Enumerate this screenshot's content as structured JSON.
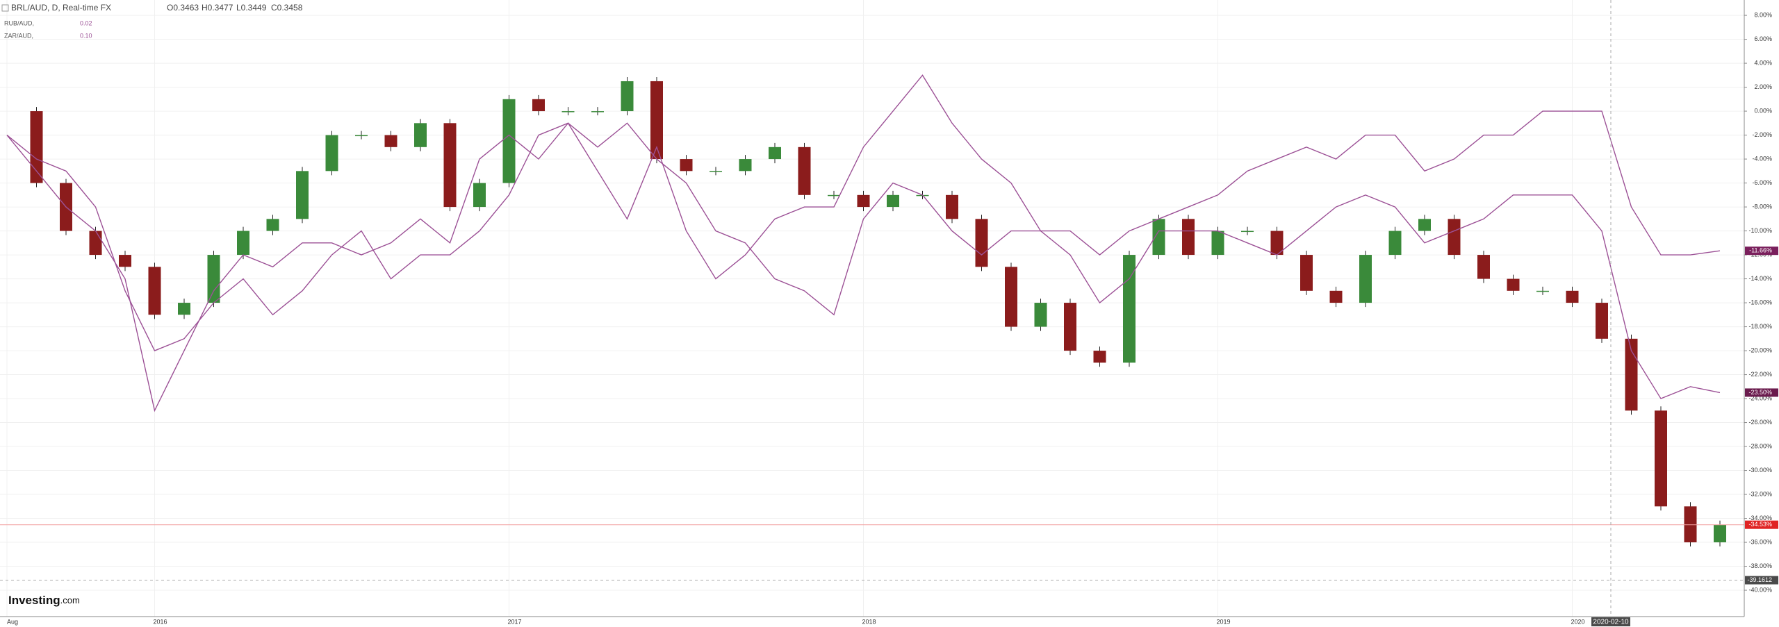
{
  "chart_data": {
    "type": "candlestick",
    "title": "BRL/AUD, D, Real-time FX",
    "ohlc": [
      "O0.3463",
      "H0.3477",
      "L0.3449",
      "C0.3458"
    ],
    "categories": [
      "Aug",
      null,
      null,
      null,
      null,
      "2016",
      null,
      null,
      null,
      null,
      null,
      null,
      null,
      null,
      null,
      null,
      null,
      "2017",
      null,
      null,
      null,
      null,
      null,
      null,
      null,
      null,
      null,
      null,
      null,
      "2018",
      null,
      null,
      null,
      null,
      null,
      null,
      null,
      null,
      null,
      null,
      null,
      "2019",
      null,
      null,
      null,
      null,
      null,
      null,
      null,
      null,
      null,
      null,
      null,
      "2020",
      null,
      null,
      null,
      null,
      null
    ],
    "up_color": "#3a8a3a",
    "down_color": "#8b1c1c",
    "series": [
      {
        "name": "BRL/AUD, D, Real-time FX",
        "type": "candlestick",
        "color": "#e02424",
        "last_value_label": "-34.53%",
        "values": [
          0,
          -6,
          -10,
          -12,
          -13,
          -17,
          -16,
          -12,
          -10,
          -9,
          -5,
          -2,
          -2,
          -3,
          -1,
          -8,
          -6,
          1,
          0,
          0,
          0,
          2.5,
          -4,
          -5,
          -5,
          -4,
          -3,
          -7,
          -7,
          -8,
          -7,
          -7,
          -9,
          -13,
          -18,
          -16,
          -20,
          -21,
          -12,
          -9,
          -12,
          -10,
          -10,
          -12,
          -15,
          -16,
          -12,
          -10,
          -9,
          -12,
          -14,
          -15,
          -15,
          -16,
          -19,
          -25,
          -33,
          -36,
          -34.53
        ]
      },
      {
        "name": "RUB/AUD,",
        "type": "line",
        "color": "#9c5196",
        "legend_value": "0.02",
        "label_color": "#7a1f5c",
        "last_value_label": "-11.66%",
        "values": [
          -2,
          -5,
          -8,
          -10,
          -14,
          -25,
          -20,
          -15,
          -12,
          -13,
          -11,
          -11,
          -12,
          -11,
          -9,
          -11,
          -4,
          -2,
          -4,
          -1,
          -5,
          -9,
          -3,
          -10,
          -14,
          -12,
          -9,
          -8,
          -8,
          -3,
          0,
          3,
          -1,
          -4,
          -6,
          -10,
          -10,
          -12,
          -10,
          -9,
          -8,
          -7,
          -5,
          -4,
          -3,
          -4,
          -2,
          -2,
          -5,
          -4,
          -2,
          -2,
          0,
          0,
          0,
          -8,
          -12,
          -12,
          -11.66
        ]
      },
      {
        "name": "ZAR/AUD,",
        "type": "line",
        "color": "#9c5196",
        "legend_value": "0.10",
        "label_color": "#6a1b4d",
        "last_value_label": "-23.50%",
        "values": [
          -2,
          -4,
          -5,
          -8,
          -15,
          -20,
          -19,
          -16,
          -14,
          -17,
          -15,
          -12,
          -10,
          -14,
          -12,
          -12,
          -10,
          -7,
          -2,
          -1,
          -3,
          -1,
          -4,
          -6,
          -10,
          -11,
          -14,
          -15,
          -17,
          -9,
          -6,
          -7,
          -10,
          -12,
          -10,
          -10,
          -12,
          -16,
          -14,
          -10,
          -10,
          -10,
          -11,
          -12,
          -10,
          -8,
          -7,
          -8,
          -11,
          -10,
          -9,
          -7,
          -7,
          -7,
          -10,
          -20,
          -24,
          -23,
          -23.5
        ]
      }
    ],
    "ylim": [
      -42.2,
      9.28
    ],
    "yticks": [
      {
        "value": 8,
        "label": "8.00%"
      },
      {
        "value": 6,
        "label": "6.00%"
      },
      {
        "value": 4,
        "label": "4.00%"
      },
      {
        "value": 2,
        "label": "2.00%"
      },
      {
        "value": 0,
        "label": "0.00%"
      },
      {
        "value": -2,
        "label": "-2.00%"
      },
      {
        "value": -4,
        "label": "-4.00%"
      },
      {
        "value": -6,
        "label": "-6.00%"
      },
      {
        "value": -8,
        "label": "-8.00%"
      },
      {
        "value": -10,
        "label": "-10.00%"
      },
      {
        "value": -12,
        "label": "-12.00%"
      },
      {
        "value": -14,
        "label": "-14.00%"
      },
      {
        "value": -16,
        "label": "-16.00%"
      },
      {
        "value": -18,
        "label": "-18.00%"
      },
      {
        "value": -20,
        "label": "-20.00%"
      },
      {
        "value": -22,
        "label": "-22.00%"
      },
      {
        "value": -24,
        "label": "-24.00%"
      },
      {
        "value": -26,
        "label": "-26.00%"
      },
      {
        "value": -28,
        "label": "-28.00%"
      },
      {
        "value": -30,
        "label": "-30.00%"
      },
      {
        "value": -32,
        "label": "-32.00%"
      },
      {
        "value": -34,
        "label": "-34.00%"
      },
      {
        "value": -36,
        "label": "-36.00%"
      },
      {
        "value": -38,
        "label": "-38.00%"
      },
      {
        "value": -40,
        "label": "-40.00%"
      }
    ],
    "grid": true,
    "crosshair": {
      "date": "2020-02-10",
      "y": {
        "value": -39.16,
        "label": "-39.1612"
      }
    },
    "logo": [
      "Investing",
      ".com"
    ]
  }
}
